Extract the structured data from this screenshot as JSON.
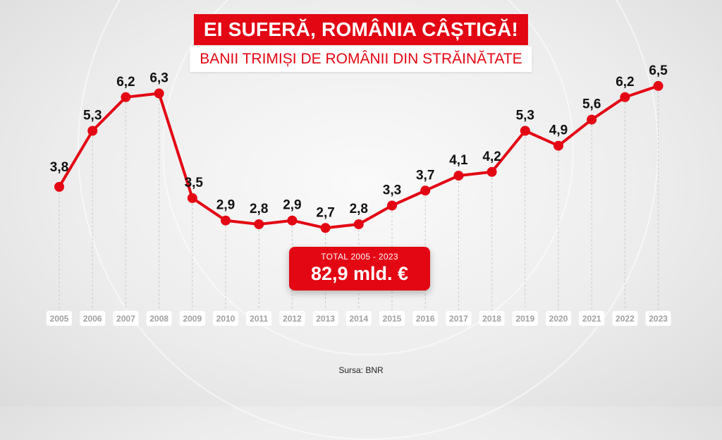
{
  "header": {
    "title": "EI SUFERĂ, ROMÂNIA CÂȘTIGĂ!",
    "subtitle": "BANII TRIMIȘI DE ROMÂNII DIN STRĂINĂTATE"
  },
  "total": {
    "label": "TOTAL 2005 - 2023",
    "value": "82,9 mld. €"
  },
  "source": "Sursa: BNR",
  "colors": {
    "accent": "#e30613",
    "year_label_bg": "#ffffff",
    "year_label_text": "#a0a0a0",
    "value_label_text": "#111111"
  },
  "chart_data": {
    "type": "line",
    "title": "",
    "xlabel": "",
    "ylabel": "",
    "grid": "dashed vertical lines per year",
    "categories": [
      "2005",
      "2006",
      "2007",
      "2008",
      "2009",
      "2010",
      "2011",
      "2012",
      "2013",
      "2014",
      "2015",
      "2016",
      "2017",
      "2018",
      "2019",
      "2020",
      "2021",
      "2022",
      "2023"
    ],
    "values": [
      3.8,
      5.3,
      6.2,
      6.3,
      3.5,
      2.9,
      2.8,
      2.9,
      2.7,
      2.8,
      3.3,
      3.7,
      4.1,
      4.2,
      5.3,
      4.9,
      5.6,
      6.2,
      6.5
    ],
    "value_labels": [
      "3,8",
      "5,3",
      "6,2",
      "6,3",
      "3,5",
      "2,9",
      "2,8",
      "2,9",
      "2,7",
      "2,8",
      "3,3",
      "3,7",
      "4,1",
      "4,2",
      "5,3",
      "4,9",
      "5,6",
      "6,2",
      "6,5"
    ]
  }
}
